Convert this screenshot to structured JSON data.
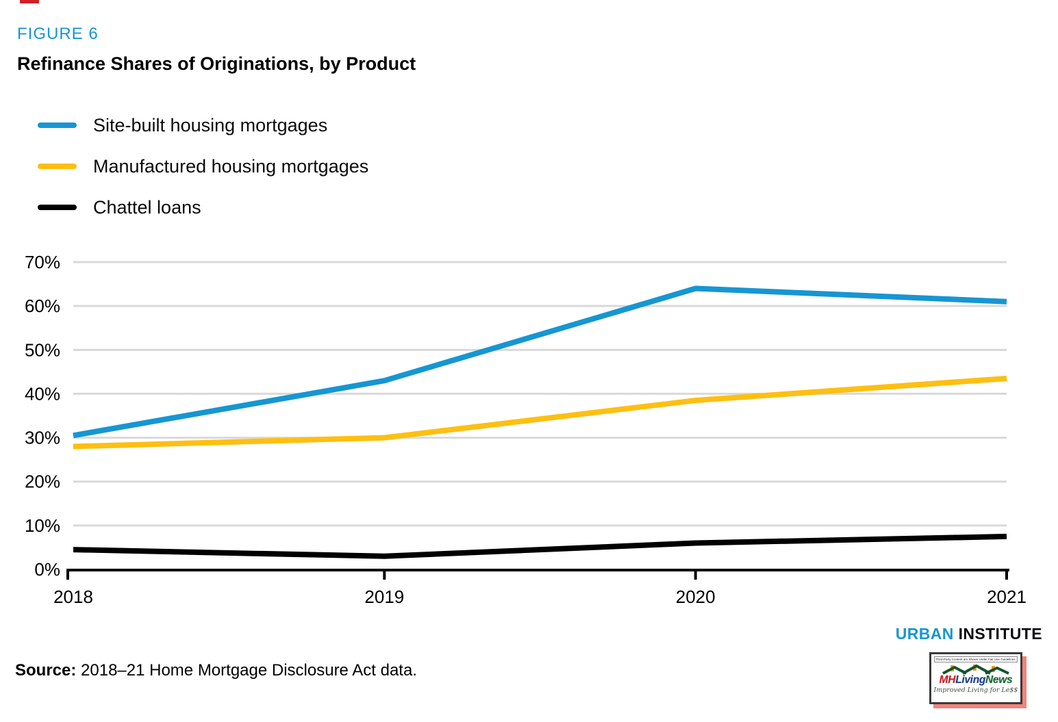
{
  "figure": {
    "label": "FIGURE 6",
    "title": "Refinance Shares of Originations, by Product"
  },
  "chart_data": {
    "type": "line",
    "x": [
      "2018",
      "2019",
      "2020",
      "2021"
    ],
    "series": [
      {
        "name": "Site-built housing mortgages",
        "color": "#1696d2",
        "values": [
          30.5,
          43,
          64,
          61
        ]
      },
      {
        "name": "Manufactured housing mortgages",
        "color": "#fdbf11",
        "values": [
          28,
          30,
          38.5,
          43.5
        ]
      },
      {
        "name": "Chattel loans",
        "color": "#000000",
        "values": [
          4.5,
          3,
          6,
          7.5
        ]
      }
    ],
    "ylim": [
      0,
      70
    ],
    "ytick_step": 10,
    "ytick_labels": [
      "0%",
      "10%",
      "20%",
      "30%",
      "40%",
      "50%",
      "60%",
      "70%"
    ],
    "grid": "horizontal-only",
    "legend_position": "top-left",
    "title": "Refinance Shares of Originations, by Product",
    "xlabel": "",
    "ylabel": ""
  },
  "branding": {
    "urban": "URBAN",
    "institute": "INSTITUTE"
  },
  "source": {
    "label": "Source:",
    "text": " 2018–21 Home Mortgage Disclosure Act data."
  },
  "watermark": {
    "disclaimer": "Third-Party Content are Shown Under Fair Use Guidelines.",
    "logo_mh": "MH",
    "logo_living": "Living",
    "logo_news": "News",
    "tagline": "Improved Living for Le$$"
  },
  "colors": {
    "accent_blue": "#1696d2",
    "series_yellow": "#fdbf11",
    "series_black": "#000000",
    "gridline": "#d9d9d9",
    "axis_black": "#000000",
    "artifact_red": "#cf2027",
    "logo_shadow_salmon": "#f2837a",
    "logo_mh_red": "#c92128",
    "logo_living_blue": "#1c3f94",
    "logo_news_green": "#166b38",
    "roof_green": "#14532c",
    "chimney_orange": "#f7941d"
  }
}
